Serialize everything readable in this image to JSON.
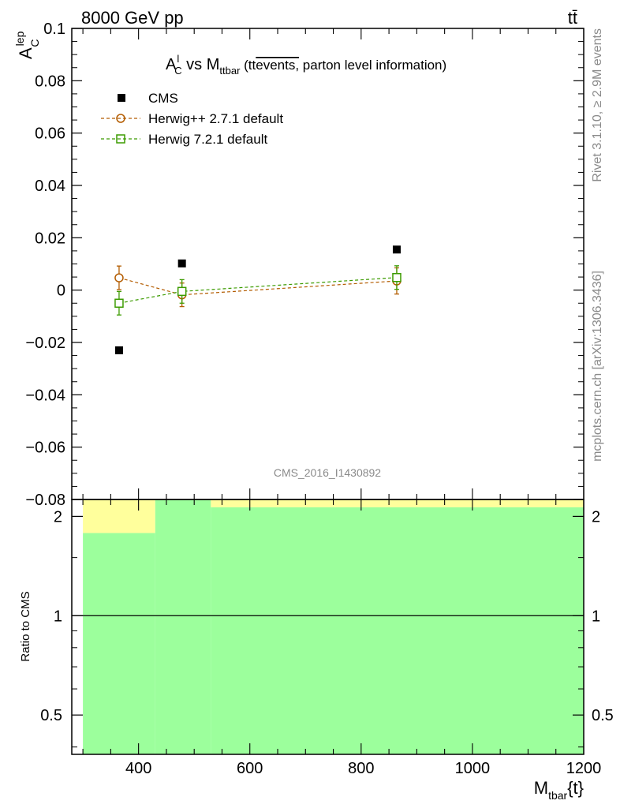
{
  "header": {
    "left_label": "8000 GeV pp",
    "right_label": "tt̄"
  },
  "chart_data": {
    "type": "scatter",
    "title": {
      "main": "A",
      "main_sup": "l",
      "main_sub": "C",
      "vs": " vs M",
      "vs_sub": "ttbar",
      "note_open": " (tt",
      "note_over": "events,",
      "note_rest": " parton level information)"
    },
    "ylabel": {
      "main": "A",
      "sup": "lep",
      "sub": "C"
    },
    "xlabel": {
      "main": "M",
      "sub": "tbar",
      "rest": "{t}"
    },
    "ratio_ylabel": "Ratio to CMS",
    "watermark": "CMS_2016_I1430892",
    "side_text_top": "Rivet 3.1.10, ≥ 2.9M events",
    "side_text_bottom": "mcplots.cern.ch [arXiv:1306.3436]",
    "xlim": [
      280,
      1200
    ],
    "ylim": [
      -0.08,
      0.1
    ],
    "ratio_ylim": [
      0.38,
      2.25
    ],
    "ratio_log": true,
    "x_ticks": [
      400,
      600,
      800,
      1000,
      1200
    ],
    "x_tick_labels": [
      "400",
      "600",
      "800",
      "1000",
      "1200"
    ],
    "y_ticks": [
      -0.08,
      -0.06,
      -0.04,
      -0.02,
      0,
      0.02,
      0.04,
      0.06,
      0.08,
      0.1
    ],
    "y_tick_labels": [
      "−0.08",
      "−0.06",
      "−0.04",
      "−0.02",
      "0",
      "0.02",
      "0.04",
      "0.06",
      "0.08",
      "0.1"
    ],
    "ratio_ticks": [
      0.5,
      1,
      2
    ],
    "ratio_tick_labels": [
      "0.5",
      "1",
      "2"
    ],
    "legend_position": "top-left",
    "series": [
      {
        "name": "CMS",
        "marker": "filled-square",
        "color": "#000000",
        "x": [
          365,
          478,
          864
        ],
        "y": [
          -0.023,
          0.0102,
          0.0155
        ],
        "err": [
          0,
          0,
          0
        ]
      },
      {
        "name": "Herwig++ 2.7.1 default",
        "marker": "open-circle",
        "color": "#b35c00",
        "x": [
          365,
          478,
          864
        ],
        "y": [
          0.0047,
          -0.0018,
          0.0035
        ],
        "err": [
          0.0045,
          0.0045,
          0.005
        ]
      },
      {
        "name": "Herwig 7.2.1 default",
        "marker": "open-square",
        "color": "#3c9b00",
        "x": [
          365,
          478,
          864
        ],
        "y": [
          -0.005,
          -0.0005,
          0.0048
        ],
        "err": [
          0.0045,
          0.0045,
          0.0045
        ]
      }
    ],
    "ratio_bands": [
      {
        "x0": 300,
        "x1": 430,
        "green_top": 1.78,
        "yellow_top": 2.25
      },
      {
        "x0": 430,
        "x1": 530,
        "green_top": 2.25,
        "yellow_top": 2.25
      },
      {
        "x0": 530,
        "x1": 1200,
        "green_top": 2.13,
        "yellow_top": 2.25
      }
    ],
    "band_colors": {
      "green": "#9cff9c",
      "yellow": "#ffff9c"
    }
  }
}
